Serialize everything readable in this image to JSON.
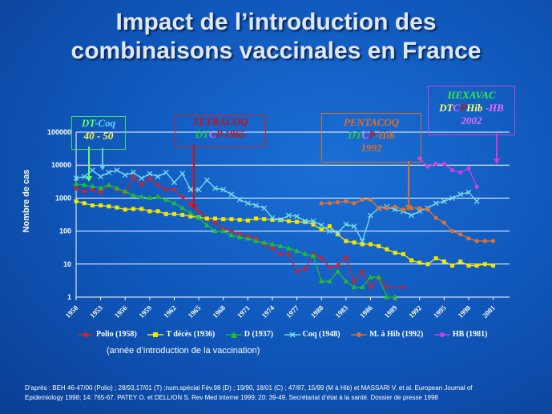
{
  "title_line1": "Impact de l’introduction des",
  "title_line2": "combinaisons vaccinales en France",
  "y_axis_label": "Nombre de cas",
  "legend_note": "(année d’introduction de la vaccination)",
  "source": "D’après : BEH 46-47/00 (Polio) ; 28/93,17/01 (T) ;num.spécial Fév.98 (D) ; 19/90, 18/01 (C) ; 47/87, 15/99 (M à Hib) et MASSARI V. et al. European Journal of Epidemiology 1998; 14: 765-67.  PATEY O. et DELLION  S. Rev Med interne 1999; 20: 39-49. Secrétariat d’état à la santé.  Dossier de presse 1998",
  "annotations": {
    "dtcoq": {
      "l1a": "DT",
      "l1b": "-Coq",
      "l2": "40 - 50",
      "color": "#66ff66",
      "arrow_color": "#66ccff"
    },
    "tetracoq": {
      "l1": "TETRACOQ",
      "l2a": "DT",
      "l2b": "C",
      "l2c": "P 1965",
      "color": "#cc1111"
    },
    "pentacoq": {
      "l1": "PENTACOQ",
      "l2a": "DT",
      "l2b": "C",
      "l2c": "P",
      "l2d": "-Hib",
      "l3": "1992",
      "color": "#e07020"
    },
    "hexavac": {
      "l1": "HEXAVAC",
      "l2a": "DT",
      "l2b": "C",
      "l2c": "P",
      "l2d": "Hib",
      "l2e": " -HB",
      "l3": "2002",
      "color": "#d040d0"
    }
  },
  "chart_data": {
    "type": "line",
    "title": "",
    "xlabel": "",
    "ylabel": "Nombre de cas",
    "y_scale": "log",
    "ylim": [
      1,
      100000
    ],
    "xlim": [
      1950,
      2003
    ],
    "x_ticks": [
      1950,
      1953,
      1956,
      1959,
      1962,
      1965,
      1968,
      1971,
      1974,
      1977,
      1980,
      1983,
      1986,
      1989,
      1992,
      1995,
      1998,
      2001
    ],
    "y_ticks": [
      1,
      10,
      100,
      1000,
      10000,
      100000
    ],
    "grid": "horizontal",
    "legend": "bottom",
    "series": [
      {
        "name": "Polio (1958)",
        "color": "#cc2233",
        "marker": "diamond",
        "points": [
          [
            1950,
            2000
          ],
          [
            1951,
            1600
          ],
          [
            1952,
            1800
          ],
          [
            1953,
            1500
          ],
          [
            1954,
            2500
          ],
          [
            1955,
            1800
          ],
          [
            1956,
            1400
          ],
          [
            1957,
            4500
          ],
          [
            1958,
            2500
          ],
          [
            1959,
            4000
          ],
          [
            1960,
            2500
          ],
          [
            1961,
            1800
          ],
          [
            1962,
            1800
          ],
          [
            1963,
            1100
          ],
          [
            1964,
            650
          ],
          [
            1965,
            400
          ],
          [
            1966,
            250
          ],
          [
            1967,
            180
          ],
          [
            1968,
            120
          ],
          [
            1969,
            100
          ],
          [
            1970,
            80
          ],
          [
            1971,
            70
          ],
          [
            1972,
            60
          ],
          [
            1973,
            40
          ],
          [
            1974,
            30
          ],
          [
            1975,
            20
          ],
          [
            1976,
            20
          ],
          [
            1977,
            6
          ],
          [
            1978,
            7
          ],
          [
            1979,
            20
          ],
          [
            1980,
            15
          ],
          [
            1981,
            8
          ],
          [
            1982,
            9
          ],
          [
            1983,
            16
          ],
          [
            1984,
            3
          ],
          [
            1985,
            6
          ],
          [
            1986,
            2
          ],
          [
            1987,
            4
          ],
          [
            1988,
            2
          ],
          [
            1990,
            2
          ]
        ]
      },
      {
        "name": "T décès (1936)",
        "color": "#f2e600",
        "marker": "square",
        "points": [
          [
            1950,
            800
          ],
          [
            1951,
            700
          ],
          [
            1952,
            600
          ],
          [
            1953,
            600
          ],
          [
            1954,
            560
          ],
          [
            1955,
            520
          ],
          [
            1956,
            450
          ],
          [
            1957,
            470
          ],
          [
            1958,
            470
          ],
          [
            1959,
            400
          ],
          [
            1960,
            400
          ],
          [
            1961,
            330
          ],
          [
            1962,
            330
          ],
          [
            1963,
            310
          ],
          [
            1964,
            280
          ],
          [
            1965,
            260
          ],
          [
            1966,
            240
          ],
          [
            1967,
            240
          ],
          [
            1968,
            230
          ],
          [
            1969,
            230
          ],
          [
            1970,
            220
          ],
          [
            1971,
            210
          ],
          [
            1972,
            240
          ],
          [
            1973,
            230
          ],
          [
            1974,
            220
          ],
          [
            1975,
            220
          ],
          [
            1976,
            200
          ],
          [
            1977,
            190
          ],
          [
            1978,
            190
          ],
          [
            1979,
            160
          ],
          [
            1980,
            110
          ],
          [
            1981,
            140
          ],
          [
            1982,
            80
          ],
          [
            1983,
            50
          ],
          [
            1984,
            45
          ],
          [
            1985,
            40
          ],
          [
            1986,
            40
          ],
          [
            1987,
            35
          ],
          [
            1988,
            28
          ],
          [
            1989,
            22
          ],
          [
            1990,
            20
          ],
          [
            1991,
            13
          ],
          [
            1992,
            11
          ],
          [
            1993,
            10
          ],
          [
            1994,
            15
          ],
          [
            1995,
            12
          ],
          [
            1996,
            9
          ],
          [
            1997,
            12
          ],
          [
            1998,
            9
          ],
          [
            1999,
            9
          ],
          [
            2000,
            10
          ],
          [
            2001,
            9
          ]
        ]
      },
      {
        "name": "D (1937)",
        "color": "#22bb33",
        "marker": "triangle",
        "points": [
          [
            1950,
            2700
          ],
          [
            1951,
            2500
          ],
          [
            1952,
            2300
          ],
          [
            1953,
            2000
          ],
          [
            1954,
            2500
          ],
          [
            1955,
            2000
          ],
          [
            1956,
            1600
          ],
          [
            1957,
            1200
          ],
          [
            1958,
            1100
          ],
          [
            1959,
            1000
          ],
          [
            1960,
            1100
          ],
          [
            1961,
            900
          ],
          [
            1962,
            700
          ],
          [
            1963,
            500
          ],
          [
            1964,
            350
          ],
          [
            1965,
            250
          ],
          [
            1966,
            150
          ],
          [
            1967,
            100
          ],
          [
            1968,
            100
          ],
          [
            1969,
            75
          ],
          [
            1970,
            65
          ],
          [
            1971,
            60
          ],
          [
            1972,
            50
          ],
          [
            1973,
            45
          ],
          [
            1974,
            40
          ],
          [
            1975,
            35
          ],
          [
            1976,
            30
          ],
          [
            1977,
            25
          ],
          [
            1978,
            20
          ],
          [
            1979,
            18
          ],
          [
            1980,
            3
          ],
          [
            1981,
            3
          ],
          [
            1982,
            6
          ],
          [
            1983,
            3
          ],
          [
            1984,
            2
          ],
          [
            1985,
            2
          ],
          [
            1986,
            4
          ],
          [
            1987,
            4
          ],
          [
            1988,
            1
          ],
          [
            1989,
            1
          ]
        ]
      },
      {
        "name": "Coq (1948)",
        "color": "#77ddee",
        "marker": "x",
        "points": [
          [
            1950,
            4000
          ],
          [
            1951,
            4500
          ],
          [
            1952,
            7000
          ],
          [
            1953,
            4500
          ],
          [
            1954,
            6000
          ],
          [
            1955,
            7000
          ],
          [
            1956,
            5000
          ],
          [
            1957,
            6000
          ],
          [
            1958,
            4000
          ],
          [
            1959,
            5500
          ],
          [
            1960,
            4500
          ],
          [
            1961,
            6000
          ],
          [
            1962,
            3000
          ],
          [
            1963,
            5500
          ],
          [
            1964,
            1800
          ],
          [
            1965,
            1800
          ],
          [
            1966,
            3500
          ],
          [
            1967,
            2000
          ],
          [
            1968,
            1800
          ],
          [
            1969,
            1300
          ],
          [
            1970,
            900
          ],
          [
            1971,
            700
          ],
          [
            1972,
            600
          ],
          [
            1973,
            500
          ],
          [
            1974,
            250
          ],
          [
            1975,
            220
          ],
          [
            1976,
            300
          ],
          [
            1977,
            280
          ],
          [
            1978,
            200
          ],
          [
            1979,
            200
          ],
          [
            1980,
            150
          ],
          [
            1981,
            100
          ],
          [
            1982,
            90
          ],
          [
            1983,
            160
          ],
          [
            1984,
            140
          ],
          [
            1985,
            50
          ],
          [
            1986,
            300
          ],
          [
            1987,
            500
          ],
          [
            1988,
            550
          ],
          [
            1989,
            450
          ],
          [
            1990,
            400
          ],
          [
            1991,
            300
          ],
          [
            1992,
            400
          ],
          [
            1993,
            500
          ],
          [
            1994,
            700
          ],
          [
            1995,
            800
          ],
          [
            1996,
            1000
          ],
          [
            1997,
            1300
          ],
          [
            1998,
            1500
          ],
          [
            1999,
            800
          ]
        ]
      },
      {
        "name": "M. à Hib (1992)",
        "color": "#e07030",
        "marker": "circle",
        "points": [
          [
            1980,
            700
          ],
          [
            1981,
            700
          ],
          [
            1982,
            750
          ],
          [
            1983,
            800
          ],
          [
            1984,
            700
          ],
          [
            1985,
            900
          ],
          [
            1986,
            900
          ],
          [
            1987,
            500
          ],
          [
            1988,
            500
          ],
          [
            1989,
            550
          ],
          [
            1990,
            450
          ],
          [
            1991,
            500
          ],
          [
            1992,
            500
          ],
          [
            1993,
            450
          ],
          [
            1994,
            250
          ],
          [
            1995,
            180
          ],
          [
            1996,
            100
          ],
          [
            1997,
            80
          ],
          [
            1998,
            60
          ],
          [
            1999,
            50
          ],
          [
            2000,
            50
          ],
          [
            2001,
            50
          ]
        ]
      },
      {
        "name": "HB (1981)",
        "color": "#d040e0",
        "marker": "circle",
        "points": [
          [
            1992,
            16000
          ],
          [
            1993,
            9000
          ],
          [
            1994,
            11000
          ],
          [
            1995,
            11000
          ],
          [
            1996,
            7000
          ],
          [
            1997,
            6000
          ],
          [
            1998,
            8000
          ],
          [
            1999,
            2200
          ]
        ]
      }
    ]
  }
}
